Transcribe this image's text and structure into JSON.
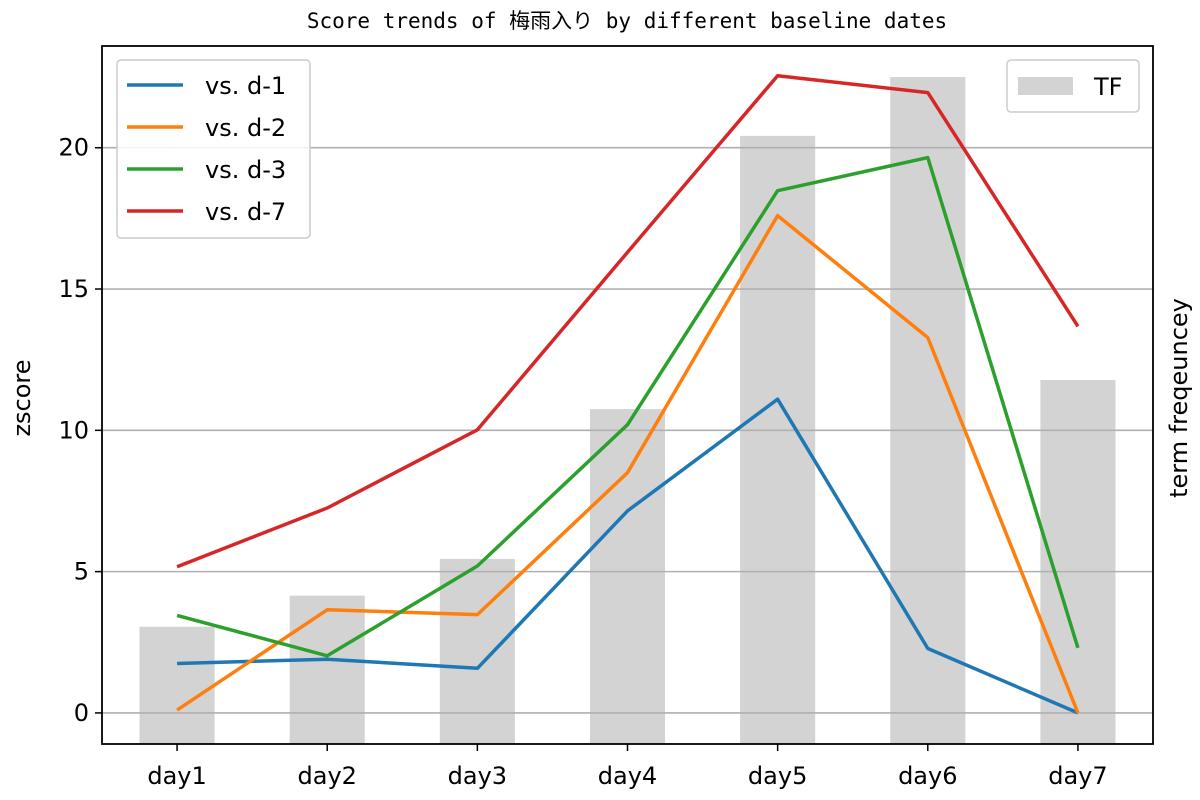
{
  "chart_data": {
    "type": "line",
    "title": "Score trends of 梅雨入り by different baseline dates",
    "xlabel": "",
    "ylabel": "zscore",
    "y2label": "term freqeuncey",
    "categories": [
      "day1",
      "day2",
      "day3",
      "day4",
      "day5",
      "day6",
      "day7"
    ],
    "ylim": [
      -1.1,
      23.6
    ],
    "yticks": [
      0,
      5,
      10,
      15,
      20
    ],
    "grid": "horizontal",
    "series": [
      {
        "name": "vs. d-1",
        "color": "#1f77b4",
        "values": [
          1.75,
          1.9,
          1.58,
          7.15,
          11.1,
          2.28,
          0.0
        ]
      },
      {
        "name": "vs. d-2",
        "color": "#ff7f0e",
        "values": [
          0.1,
          3.65,
          3.48,
          8.5,
          17.6,
          13.28,
          0.0
        ]
      },
      {
        "name": "vs. d-3",
        "color": "#2ca02c",
        "values": [
          3.45,
          2.02,
          5.2,
          10.2,
          18.48,
          19.65,
          2.3
        ]
      },
      {
        "name": "vs. d-7",
        "color": "#d62728",
        "values": [
          5.17,
          7.25,
          10.02,
          16.3,
          22.55,
          21.95,
          13.68
        ]
      }
    ],
    "bars": {
      "name": "TF",
      "color": "#d3d3d3",
      "values": [
        3.05,
        4.15,
        5.45,
        10.75,
        20.42,
        22.5,
        11.78
      ]
    },
    "legend_lines_position": "top-left",
    "legend_bars_position": "top-right"
  }
}
